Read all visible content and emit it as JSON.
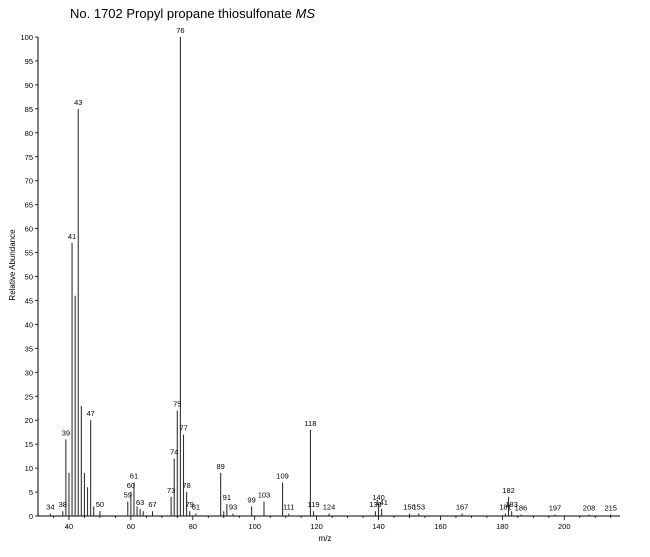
{
  "title": {
    "main": "No. 1702 Propyl propane thiosulfonate",
    "suffix": "MS"
  },
  "chart_data": {
    "type": "bar",
    "title": "No. 1702 Propyl propane thiosulfonate MS",
    "xlabel": "m/z",
    "ylabel": "Relative Abundance",
    "xlim": [
      30,
      218
    ],
    "ylim": [
      0,
      100
    ],
    "xticks": [
      40,
      60,
      80,
      100,
      120,
      140,
      160,
      180,
      200
    ],
    "yticks": [
      0,
      5,
      10,
      15,
      20,
      25,
      30,
      35,
      40,
      45,
      50,
      55,
      60,
      65,
      70,
      75,
      80,
      85,
      90,
      95,
      100
    ],
    "grid": false,
    "peaks": [
      {
        "mz": 34,
        "intensity": 0.5,
        "label": "34"
      },
      {
        "mz": 38,
        "intensity": 1,
        "label": "38"
      },
      {
        "mz": 39,
        "intensity": 16,
        "label": "39"
      },
      {
        "mz": 40,
        "intensity": 9
      },
      {
        "mz": 41,
        "intensity": 57,
        "label": "41"
      },
      {
        "mz": 42,
        "intensity": 46
      },
      {
        "mz": 43,
        "intensity": 85,
        "label": "43"
      },
      {
        "mz": 44,
        "intensity": 23
      },
      {
        "mz": 45,
        "intensity": 9
      },
      {
        "mz": 46,
        "intensity": 6
      },
      {
        "mz": 47,
        "intensity": 20,
        "label": "47"
      },
      {
        "mz": 48,
        "intensity": 2
      },
      {
        "mz": 50,
        "intensity": 1,
        "label": "50"
      },
      {
        "mz": 59,
        "intensity": 3,
        "label": "59"
      },
      {
        "mz": 60,
        "intensity": 5,
        "label": "60"
      },
      {
        "mz": 61,
        "intensity": 7,
        "label": "61"
      },
      {
        "mz": 62,
        "intensity": 2
      },
      {
        "mz": 63,
        "intensity": 1.5,
        "label": "63"
      },
      {
        "mz": 64,
        "intensity": 1
      },
      {
        "mz": 67,
        "intensity": 1,
        "label": "67"
      },
      {
        "mz": 73,
        "intensity": 4,
        "label": "73"
      },
      {
        "mz": 74,
        "intensity": 12,
        "label": "74"
      },
      {
        "mz": 75,
        "intensity": 22,
        "label": "75"
      },
      {
        "mz": 76,
        "intensity": 100,
        "label": "76"
      },
      {
        "mz": 77,
        "intensity": 17,
        "label": "77"
      },
      {
        "mz": 78,
        "intensity": 5,
        "label": "78"
      },
      {
        "mz": 79,
        "intensity": 1,
        "label": "79"
      },
      {
        "mz": 81,
        "intensity": 0.5,
        "label": "81"
      },
      {
        "mz": 89,
        "intensity": 9,
        "label": "89"
      },
      {
        "mz": 90,
        "intensity": 1
      },
      {
        "mz": 91,
        "intensity": 2.5,
        "label": "91"
      },
      {
        "mz": 93,
        "intensity": 0.5,
        "label": "93"
      },
      {
        "mz": 99,
        "intensity": 2,
        "label": "99"
      },
      {
        "mz": 103,
        "intensity": 3,
        "label": "103"
      },
      {
        "mz": 109,
        "intensity": 7,
        "label": "109"
      },
      {
        "mz": 111,
        "intensity": 0.5,
        "label": "111"
      },
      {
        "mz": 118,
        "intensity": 18,
        "label": "118"
      },
      {
        "mz": 119,
        "intensity": 1,
        "label": "119"
      },
      {
        "mz": 124,
        "intensity": 0.5,
        "label": "124"
      },
      {
        "mz": 139,
        "intensity": 1,
        "label": "139"
      },
      {
        "mz": 140,
        "intensity": 2.5,
        "label": "140"
      },
      {
        "mz": 141,
        "intensity": 1.5,
        "label": "141"
      },
      {
        "mz": 150,
        "intensity": 0.5,
        "label": "150"
      },
      {
        "mz": 153,
        "intensity": 0.5,
        "label": "153"
      },
      {
        "mz": 167,
        "intensity": 0.5,
        "label": "167"
      },
      {
        "mz": 181,
        "intensity": 0.5,
        "label": "181"
      },
      {
        "mz": 182,
        "intensity": 4,
        "label": "182"
      },
      {
        "mz": 183,
        "intensity": 1,
        "label": "183"
      },
      {
        "mz": 186,
        "intensity": 0.3,
        "label": "186"
      },
      {
        "mz": 197,
        "intensity": 0.3,
        "label": "197"
      },
      {
        "mz": 208,
        "intensity": 0.3,
        "label": "208"
      },
      {
        "mz": 215,
        "intensity": 0.3,
        "label": "215"
      }
    ]
  }
}
